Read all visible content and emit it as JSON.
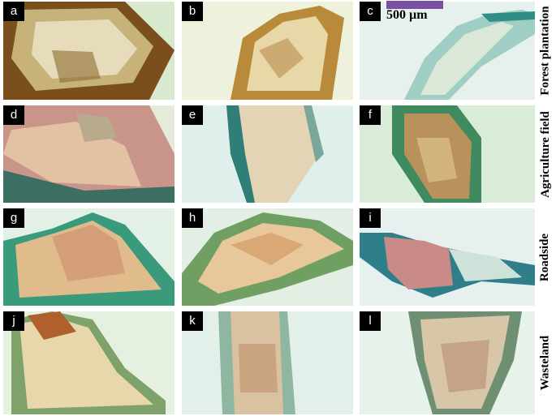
{
  "figure": {
    "scale_bar": {
      "text": "500 µm",
      "color": "#7b4fa0"
    },
    "rows": [
      {
        "label": "Forest plantation"
      },
      {
        "label": "Agriculture field"
      },
      {
        "label": "Roadside"
      },
      {
        "label": "Wasteland"
      }
    ],
    "panels": [
      {
        "label": "a"
      },
      {
        "label": "b"
      },
      {
        "label": "c"
      },
      {
        "label": "d"
      },
      {
        "label": "e"
      },
      {
        "label": "f"
      },
      {
        "label": "g"
      },
      {
        "label": "h"
      },
      {
        "label": "i"
      },
      {
        "label": "j"
      },
      {
        "label": "k"
      },
      {
        "label": "l"
      }
    ],
    "marker": {
      "fill": "#f2e600",
      "stroke": "#1c4f8c"
    }
  }
}
